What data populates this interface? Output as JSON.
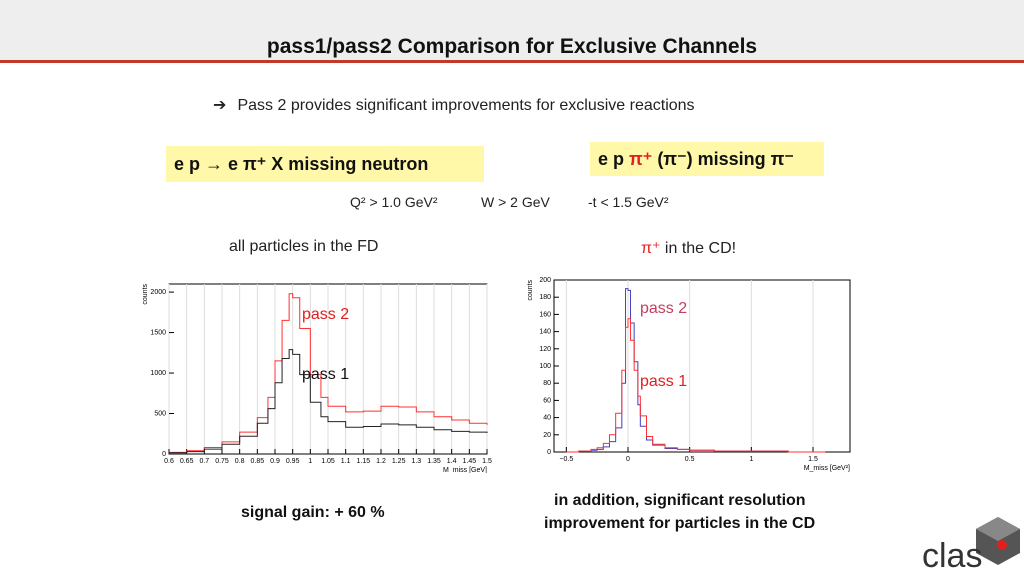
{
  "title": "pass1/pass2 Comparison for Exclusive Channels",
  "bullet": "Pass 2 provides significant improvements for exclusive reactions",
  "box_left": "e p → e π⁺ X missing neutron",
  "box_right": {
    "pre": "e p ",
    "pi_plus": "π⁺",
    "mid": " (π⁻) missing π⁻"
  },
  "cuts": {
    "q2": "Q² > 1.0 GeV²",
    "w": "W > 2 GeV",
    "t": "-t < 1.5 GeV²"
  },
  "caption_left": "all particles in the FD",
  "caption_right": {
    "pi": "π⁺",
    "rest": " in the CD!"
  },
  "signal_gain": "signal gain: + 60 %",
  "resolution_note": [
    "in addition, significant resolution",
    "improvement for particles in the CD"
  ],
  "logo_text": "clas",
  "colors": {
    "pass2": "#ff3030",
    "pass1": "#222222",
    "pass2_right": "#4040c0",
    "pass1_right": "#ff3030"
  },
  "chart_data": [
    {
      "type": "line",
      "ylabel": "counts",
      "xlabel": "M_miss [GeV]",
      "xlim": [
        0.6,
        1.5
      ],
      "ylim": [
        0,
        2100
      ],
      "xticks": [
        0.6,
        0.65,
        0.7,
        0.75,
        0.8,
        0.85,
        0.9,
        0.95,
        1,
        1.05,
        1.1,
        1.15,
        1.2,
        1.25,
        1.3,
        1.35,
        1.4,
        1.45,
        1.5
      ],
      "yticks": [
        0,
        500,
        1000,
        1500,
        2000
      ],
      "annotations": [
        "pass 2",
        "pass 1"
      ],
      "x": [
        0.6,
        0.65,
        0.7,
        0.75,
        0.8,
        0.85,
        0.88,
        0.9,
        0.92,
        0.94,
        0.95,
        0.97,
        1.0,
        1.03,
        1.05,
        1.1,
        1.15,
        1.2,
        1.25,
        1.3,
        1.35,
        1.4,
        1.45,
        1.5
      ],
      "series": [
        {
          "name": "pass 2",
          "values": [
            20,
            40,
            80,
            150,
            270,
            450,
            700,
            1150,
            1650,
            1980,
            1930,
            1550,
            980,
            700,
            590,
            520,
            530,
            590,
            580,
            520,
            460,
            420,
            380,
            360
          ]
        },
        {
          "name": "pass 1",
          "values": [
            15,
            30,
            60,
            120,
            220,
            380,
            560,
            880,
            1180,
            1290,
            1230,
            980,
            640,
            460,
            400,
            330,
            340,
            370,
            360,
            330,
            300,
            280,
            270,
            260
          ]
        }
      ]
    },
    {
      "type": "line",
      "ylabel": "counts",
      "xlabel": "M_miss [GeV²]",
      "xlim": [
        -0.6,
        1.8
      ],
      "ylim": [
        0,
        200
      ],
      "xticks": [
        -0.5,
        0,
        0.5,
        1,
        1.5
      ],
      "yticks": [
        0,
        20,
        40,
        60,
        80,
        100,
        120,
        140,
        160,
        180,
        200
      ],
      "annotations": [
        "pass 2",
        "pass 1"
      ],
      "x": [
        -0.5,
        -0.4,
        -0.3,
        -0.25,
        -0.2,
        -0.15,
        -0.1,
        -0.05,
        -0.02,
        0,
        0.02,
        0.05,
        0.08,
        0.1,
        0.15,
        0.2,
        0.3,
        0.4,
        0.5,
        0.7,
        1.0,
        1.3,
        1.6
      ],
      "series": [
        {
          "name": "pass 2",
          "values": [
            0,
            1,
            2,
            3,
            6,
            12,
            28,
            80,
            190,
            188,
            150,
            105,
            55,
            30,
            14,
            8,
            4,
            3,
            2,
            1,
            1,
            0,
            0
          ]
        },
        {
          "name": "pass 1",
          "values": [
            0,
            1,
            3,
            5,
            10,
            20,
            45,
            95,
            145,
            155,
            130,
            95,
            65,
            42,
            18,
            9,
            5,
            3,
            2,
            1,
            1,
            0,
            0
          ]
        }
      ]
    }
  ]
}
